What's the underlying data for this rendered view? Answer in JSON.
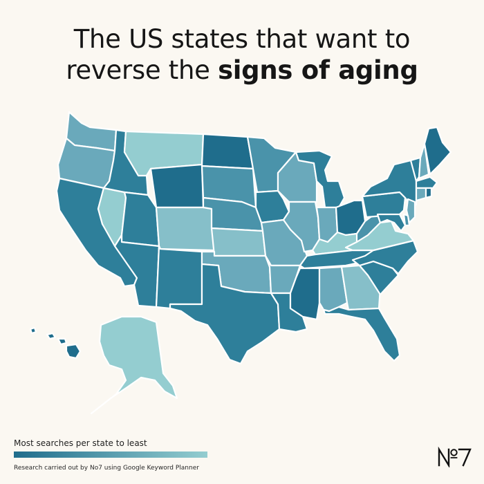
{
  "title": {
    "line1": "The US states that want to",
    "line2_regular": "reverse the ",
    "line2_bold": "signs of aging"
  },
  "legend": {
    "label": "Most searches per state to least",
    "gradient_start": "#1f6d8c",
    "gradient_end": "#94cdd0"
  },
  "credit": "Research carried out by No7 using Google Keyword Planner",
  "logo": {
    "text": "N°7",
    "color": "#111111"
  },
  "palette": {
    "darkest": "#1f6d8c",
    "dark": "#2e7f9a",
    "mid": "#4a93aa",
    "light": "#6aa9bb",
    "lighter": "#86bfc9",
    "lightest": "#94cdd0"
  },
  "states": [
    {
      "name": "Washington",
      "shade": "light"
    },
    {
      "name": "Oregon",
      "shade": "light"
    },
    {
      "name": "California",
      "shade": "dark"
    },
    {
      "name": "Nevada",
      "shade": "lightest"
    },
    {
      "name": "Idaho",
      "shade": "dark"
    },
    {
      "name": "Montana",
      "shade": "lightest"
    },
    {
      "name": "Wyoming",
      "shade": "darkest"
    },
    {
      "name": "Utah",
      "shade": "dark"
    },
    {
      "name": "Colorado",
      "shade": "lighter"
    },
    {
      "name": "Arizona",
      "shade": "dark"
    },
    {
      "name": "New Mexico",
      "shade": "dark"
    },
    {
      "name": "North Dakota",
      "shade": "darkest"
    },
    {
      "name": "South Dakota",
      "shade": "mid"
    },
    {
      "name": "Nebraska",
      "shade": "mid"
    },
    {
      "name": "Kansas",
      "shade": "lighter"
    },
    {
      "name": "Oklahoma",
      "shade": "light"
    },
    {
      "name": "Texas",
      "shade": "dark"
    },
    {
      "name": "Minnesota",
      "shade": "mid"
    },
    {
      "name": "Iowa",
      "shade": "dark"
    },
    {
      "name": "Missouri",
      "shade": "light"
    },
    {
      "name": "Arkansas",
      "shade": "light"
    },
    {
      "name": "Louisiana",
      "shade": "dark"
    },
    {
      "name": "Wisconsin",
      "shade": "light"
    },
    {
      "name": "Illinois",
      "shade": "light"
    },
    {
      "name": "Michigan",
      "shade": "dark"
    },
    {
      "name": "Indiana",
      "shade": "light"
    },
    {
      "name": "Ohio",
      "shade": "darkest"
    },
    {
      "name": "Kentucky",
      "shade": "lightest"
    },
    {
      "name": "Tennessee",
      "shade": "dark"
    },
    {
      "name": "Mississippi",
      "shade": "darkest"
    },
    {
      "name": "Alabama",
      "shade": "light"
    },
    {
      "name": "Georgia",
      "shade": "lighter"
    },
    {
      "name": "Florida",
      "shade": "dark"
    },
    {
      "name": "South Carolina",
      "shade": "dark"
    },
    {
      "name": "North Carolina",
      "shade": "dark"
    },
    {
      "name": "Virginia",
      "shade": "lightest"
    },
    {
      "name": "West Virginia",
      "shade": "mid"
    },
    {
      "name": "Pennsylvania",
      "shade": "dark"
    },
    {
      "name": "New York",
      "shade": "dark"
    },
    {
      "name": "Vermont",
      "shade": "dark"
    },
    {
      "name": "New Hampshire",
      "shade": "light"
    },
    {
      "name": "Maine",
      "shade": "darkest"
    },
    {
      "name": "Massachusetts",
      "shade": "dark"
    },
    {
      "name": "Connecticut",
      "shade": "light"
    },
    {
      "name": "Rhode Island",
      "shade": "darkest"
    },
    {
      "name": "New Jersey",
      "shade": "light"
    },
    {
      "name": "Delaware",
      "shade": "mid"
    },
    {
      "name": "Maryland",
      "shade": "dark"
    },
    {
      "name": "Alaska",
      "shade": "lightest"
    },
    {
      "name": "Hawaii",
      "shade": "darkest"
    }
  ]
}
